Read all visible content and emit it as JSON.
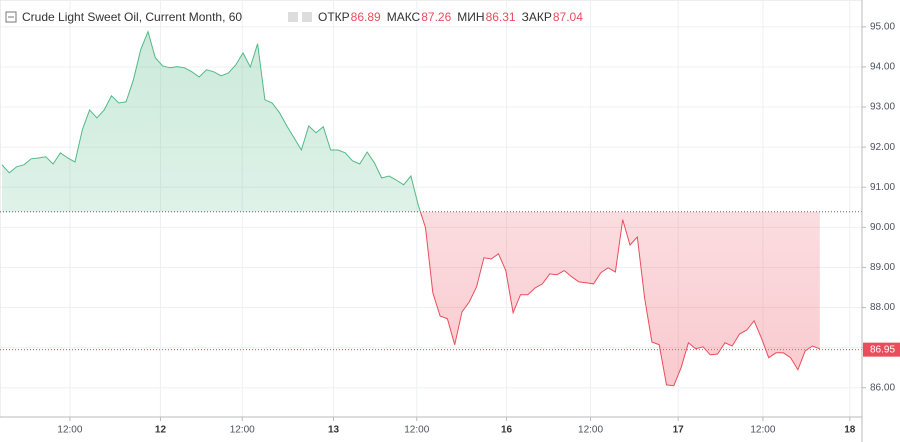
{
  "chart_data": {
    "type": "baseline",
    "title": "Crude Light Sweet Oil, Current Month, 60",
    "ohlc": [
      {
        "label": "ОТКР",
        "value": 86.89
      },
      {
        "label": "МАКС",
        "value": 87.26
      },
      {
        "label": "МИН",
        "value": 86.31
      },
      {
        "label": "ЗАКР",
        "value": 87.04
      }
    ],
    "values": [
      91.56,
      91.36,
      91.51,
      91.56,
      91.71,
      91.73,
      91.76,
      91.58,
      91.86,
      91.73,
      91.63,
      92.43,
      92.93,
      92.73,
      92.93,
      93.28,
      93.1,
      93.13,
      93.68,
      94.43,
      94.88,
      94.23,
      94.03,
      93.98,
      94.01,
      93.98,
      93.88,
      93.75,
      93.93,
      93.88,
      93.78,
      93.85,
      94.05,
      94.35,
      94.0,
      94.58,
      93.18,
      93.1,
      92.86,
      92.53,
      92.23,
      91.93,
      92.53,
      92.36,
      92.51,
      91.93,
      91.93,
      91.86,
      91.66,
      91.58,
      91.88,
      91.61,
      91.23,
      91.28,
      91.18,
      91.06,
      91.28,
      90.56,
      89.99,
      88.37,
      87.79,
      87.72,
      87.07,
      87.89,
      88.14,
      88.52,
      89.24,
      89.21,
      89.34,
      88.92,
      87.87,
      88.32,
      88.32,
      88.49,
      88.59,
      88.84,
      88.82,
      88.92,
      88.77,
      88.64,
      88.62,
      88.59,
      88.87,
      88.99,
      88.89,
      90.19,
      89.56,
      89.76,
      88.24,
      87.14,
      87.07,
      86.07,
      86.05,
      86.5,
      87.12,
      86.97,
      87.02,
      86.82,
      86.84,
      87.12,
      87.04,
      87.34,
      87.44,
      87.67,
      87.24,
      86.75,
      86.87,
      86.87,
      86.75,
      86.45,
      86.92,
      87.04,
      86.97
    ],
    "baseline": 90.39,
    "color_above": "#53b987",
    "color_below": "#eb4d5c",
    "last_price": {
      "value": 86.95,
      "label": "86.95"
    },
    "xlim": [
      0,
      117.5
    ],
    "xticks": [
      {
        "value": 9.3,
        "label": "12:00"
      },
      {
        "value": 21.7,
        "label": "12"
      },
      {
        "value": 32.9,
        "label": "12:00"
      },
      {
        "value": 45.4,
        "label": "13"
      },
      {
        "value": 56.8,
        "label": "12:00"
      },
      {
        "value": 69.1,
        "label": "16"
      },
      {
        "value": 80.6,
        "label": "12:00"
      },
      {
        "value": 92.6,
        "label": "17"
      },
      {
        "value": 104.2,
        "label": "12:00"
      },
      {
        "value": 116.1,
        "label": "18"
      }
    ],
    "ylim": [
      85.27,
      95.67
    ],
    "yticks": [
      {
        "value": 86,
        "label": "86.00"
      },
      {
        "value": 87,
        "label": "87.00"
      },
      {
        "value": 88,
        "label": "88.00"
      },
      {
        "value": 89,
        "label": "89.00"
      },
      {
        "value": 90,
        "label": "90.00"
      },
      {
        "value": 91,
        "label": "91.00"
      },
      {
        "value": 92,
        "label": "92.00"
      },
      {
        "value": 93,
        "label": "93.00"
      },
      {
        "value": 94,
        "label": "94.00"
      },
      {
        "value": 95,
        "label": "95.00"
      }
    ],
    "grid": true
  }
}
